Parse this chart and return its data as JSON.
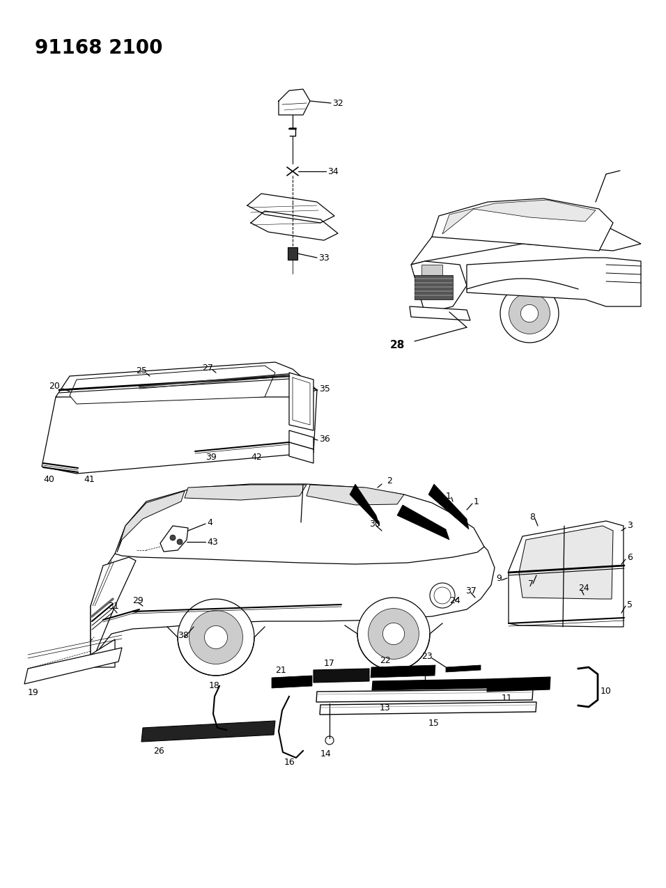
{
  "title": "91168 2100",
  "background_color": "#ffffff",
  "figsize": [
    9.56,
    12.75
  ],
  "dpi": 100,
  "title_fontsize": 20,
  "label_fontsize": 9,
  "lw": 0.9
}
